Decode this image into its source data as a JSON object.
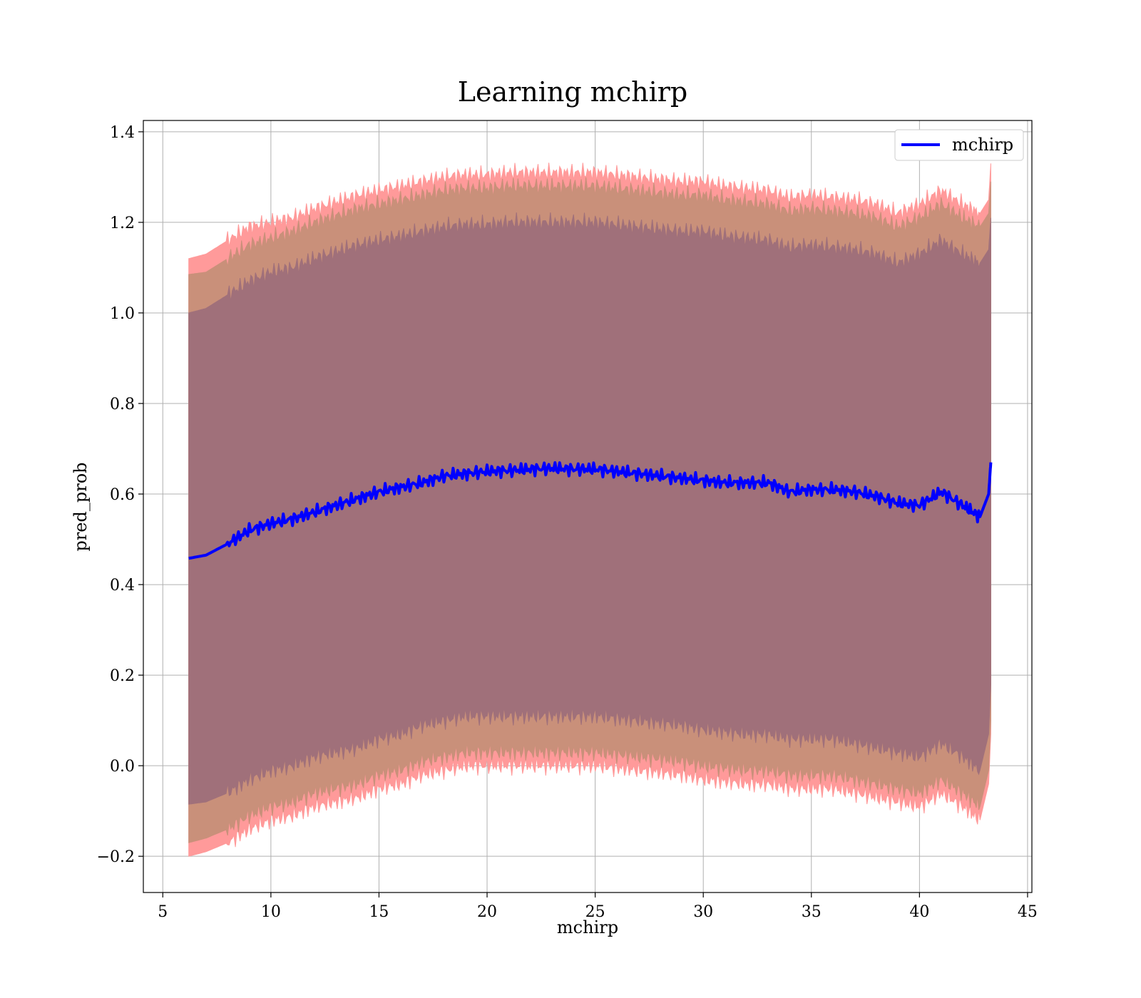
{
  "chart_data": {
    "type": "line",
    "title": "Learning mchirp",
    "xlabel": "mchirp",
    "ylabel": "pred_prob",
    "xlim": [
      4.1,
      45.2
    ],
    "ylim": [
      -0.28,
      1.425
    ],
    "grid": true,
    "legend": {
      "position": "top-right",
      "entries": [
        "mchirp"
      ]
    },
    "x_ticks": [
      5,
      10,
      15,
      20,
      25,
      30,
      35,
      40,
      45
    ],
    "x_tick_labels": [
      "5",
      "10",
      "15",
      "20",
      "25",
      "30",
      "35",
      "40",
      "45"
    ],
    "y_ticks": [
      -0.2,
      0.0,
      0.2,
      0.4,
      0.6,
      0.8,
      1.0,
      1.2,
      1.4
    ],
    "y_tick_labels": [
      "−0.2",
      "0.0",
      "0.2",
      "0.4",
      "0.6",
      "0.8",
      "1.0",
      "1.2",
      "1.4"
    ],
    "colors": {
      "line": "#0000ff",
      "band_outer": "#ff9a9a",
      "band_middle": "#c9907a",
      "band_inner": "#a0707a",
      "grid": "#b0b0b0"
    },
    "series": [
      {
        "name": "mchirp",
        "x": [
          6.2,
          7,
          8,
          9,
          10,
          11,
          12,
          13,
          14,
          15,
          16,
          17,
          18,
          19,
          20,
          21,
          22,
          23,
          24,
          25,
          26,
          27,
          28,
          29,
          30,
          31,
          32,
          33,
          34,
          35,
          36,
          37,
          38,
          39,
          40,
          41,
          42,
          42.8,
          43.2,
          43.3
        ],
        "y": [
          0.458,
          0.465,
          0.49,
          0.52,
          0.535,
          0.545,
          0.56,
          0.575,
          0.59,
          0.605,
          0.615,
          0.625,
          0.64,
          0.645,
          0.65,
          0.652,
          0.655,
          0.657,
          0.655,
          0.655,
          0.65,
          0.645,
          0.64,
          0.635,
          0.63,
          0.625,
          0.625,
          0.625,
          0.605,
          0.61,
          0.61,
          0.605,
          0.595,
          0.58,
          0.575,
          0.605,
          0.575,
          0.55,
          0.6,
          0.67
        ]
      }
    ],
    "bands": [
      {
        "name": "outer",
        "upper": [
          1.12,
          1.13,
          1.16,
          1.19,
          1.2,
          1.21,
          1.23,
          1.245,
          1.26,
          1.27,
          1.28,
          1.29,
          1.3,
          1.305,
          1.305,
          1.31,
          1.31,
          1.31,
          1.31,
          1.31,
          1.305,
          1.3,
          1.295,
          1.29,
          1.29,
          1.28,
          1.275,
          1.27,
          1.255,
          1.26,
          1.255,
          1.25,
          1.24,
          1.22,
          1.24,
          1.27,
          1.24,
          1.22,
          1.25,
          1.33
        ],
        "lower": [
          -0.2,
          -0.19,
          -0.17,
          -0.14,
          -0.12,
          -0.11,
          -0.09,
          -0.08,
          -0.07,
          -0.05,
          -0.04,
          -0.02,
          -0.01,
          0.0,
          0.0,
          0.0,
          0.0,
          0.0,
          0.0,
          0.0,
          -0.005,
          -0.01,
          -0.015,
          -0.02,
          -0.03,
          -0.035,
          -0.04,
          -0.04,
          -0.05,
          -0.05,
          -0.05,
          -0.06,
          -0.07,
          -0.08,
          -0.09,
          -0.06,
          -0.09,
          -0.12,
          -0.04,
          0.07
        ]
      },
      {
        "name": "middle",
        "upper": [
          1.085,
          1.09,
          1.12,
          1.15,
          1.165,
          1.18,
          1.2,
          1.215,
          1.23,
          1.24,
          1.25,
          1.26,
          1.27,
          1.275,
          1.275,
          1.28,
          1.28,
          1.28,
          1.28,
          1.28,
          1.275,
          1.27,
          1.265,
          1.26,
          1.26,
          1.25,
          1.245,
          1.24,
          1.225,
          1.23,
          1.225,
          1.22,
          1.21,
          1.19,
          1.21,
          1.24,
          1.21,
          1.19,
          1.22,
          1.29
        ],
        "lower": [
          -0.17,
          -0.16,
          -0.14,
          -0.11,
          -0.09,
          -0.08,
          -0.06,
          -0.05,
          -0.04,
          -0.02,
          -0.01,
          0.01,
          0.02,
          0.03,
          0.03,
          0.03,
          0.03,
          0.03,
          0.03,
          0.03,
          0.025,
          0.02,
          0.015,
          0.01,
          0.0,
          -0.005,
          -0.01,
          -0.01,
          -0.02,
          -0.02,
          -0.02,
          -0.03,
          -0.04,
          -0.05,
          -0.06,
          -0.03,
          -0.06,
          -0.09,
          -0.01,
          0.1
        ]
      },
      {
        "name": "inner",
        "upper": [
          1.0,
          1.01,
          1.04,
          1.07,
          1.09,
          1.1,
          1.12,
          1.135,
          1.15,
          1.16,
          1.17,
          1.18,
          1.19,
          1.195,
          1.195,
          1.2,
          1.2,
          1.2,
          1.2,
          1.2,
          1.195,
          1.19,
          1.185,
          1.18,
          1.18,
          1.17,
          1.165,
          1.16,
          1.145,
          1.15,
          1.145,
          1.14,
          1.13,
          1.11,
          1.13,
          1.16,
          1.13,
          1.11,
          1.14,
          1.21
        ],
        "lower": [
          -0.085,
          -0.08,
          -0.06,
          -0.03,
          -0.01,
          0.0,
          0.02,
          0.03,
          0.04,
          0.06,
          0.07,
          0.09,
          0.1,
          0.11,
          0.11,
          0.11,
          0.11,
          0.11,
          0.11,
          0.11,
          0.105,
          0.1,
          0.095,
          0.09,
          0.08,
          0.075,
          0.07,
          0.07,
          0.06,
          0.06,
          0.06,
          0.05,
          0.04,
          0.03,
          0.02,
          0.05,
          0.02,
          -0.01,
          0.07,
          0.18
        ]
      }
    ]
  }
}
